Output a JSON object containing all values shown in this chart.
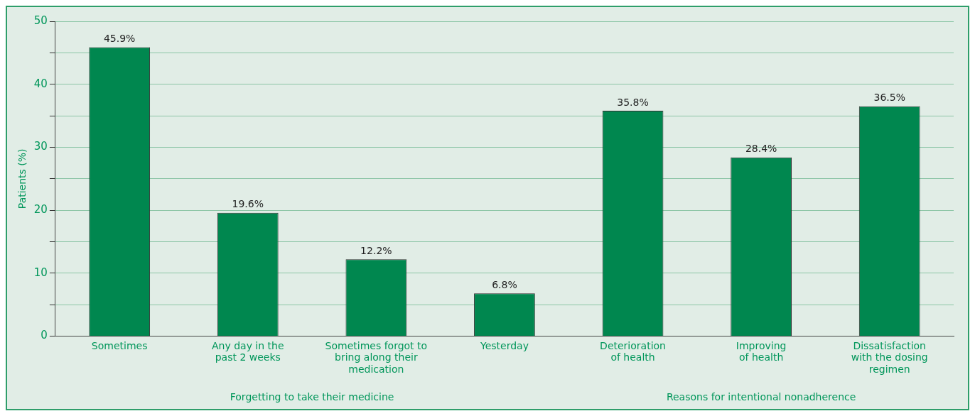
{
  "chart_data": {
    "type": "bar",
    "ylabel": "Patients (%)",
    "categories": [
      "Sometimes",
      "Any day in the\npast 2 weeks",
      "Sometimes forgot to\nbring along their\nmedication",
      "Yesterday",
      "Deterioration\nof health",
      "Improving\nof health",
      "Dissatisfaction\nwith the dosing\nregimen"
    ],
    "values": [
      45.9,
      19.6,
      12.2,
      6.8,
      35.8,
      28.4,
      36.5
    ],
    "value_labels": [
      "45.9%",
      "19.6%",
      "12.2%",
      "6.8%",
      "35.8%",
      "28.4%",
      "36.5%"
    ],
    "color": "#00874f",
    "ylim": [
      0,
      50
    ],
    "yticks": [
      0,
      {
        "value": 5,
        "label": null
      },
      10,
      {
        "value": 15,
        "label": null
      },
      20,
      {
        "value": 25,
        "label": null
      },
      30,
      {
        "value": 35,
        "label": null
      },
      40,
      {
        "value": 45,
        "label": null
      },
      50
    ],
    "grid": "y",
    "legend": false,
    "annotations": [
      "Forgetting to take their medicine",
      "Reasons for intentional nonadherence"
    ]
  }
}
